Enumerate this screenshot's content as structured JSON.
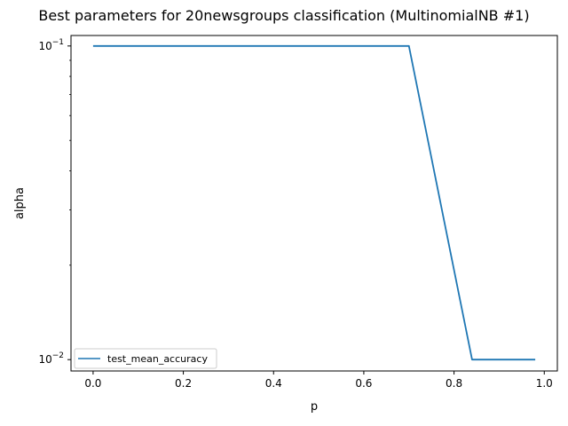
{
  "chart_data": {
    "type": "line",
    "title": "Best parameters for 20newsgroups classification (MultinomialNB #1)",
    "xlabel": "p",
    "ylabel": "alpha",
    "xlim": [
      -0.049,
      1.029
    ],
    "ylim": [
      0.0092,
      0.108
    ],
    "yscale": "log",
    "grid": false,
    "legend_position": "lower-left",
    "x_ticks": [
      {
        "value": 0.0,
        "label": "0.0"
      },
      {
        "value": 0.2,
        "label": "0.2"
      },
      {
        "value": 0.4,
        "label": "0.4"
      },
      {
        "value": 0.6,
        "label": "0.6"
      },
      {
        "value": 0.8,
        "label": "0.8"
      },
      {
        "value": 1.0,
        "label": "1.0"
      }
    ],
    "y_ticks": [
      {
        "value": 0.1,
        "label_base": "10",
        "label_exp": "−1"
      },
      {
        "value": 0.01,
        "label_base": "10",
        "label_exp": "−2"
      }
    ],
    "series": [
      {
        "name": "test_mean_accuracy",
        "color": "#1f77b4",
        "x": [
          0.0,
          0.7,
          0.84,
          0.98
        ],
        "y": [
          0.1,
          0.1,
          0.01,
          0.01
        ]
      }
    ]
  }
}
